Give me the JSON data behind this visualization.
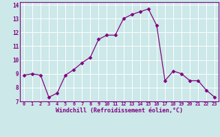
{
  "x": [
    0,
    1,
    2,
    3,
    4,
    5,
    6,
    7,
    8,
    9,
    10,
    11,
    12,
    13,
    14,
    15,
    16,
    17,
    18,
    19,
    20,
    21,
    22,
    23
  ],
  "y": [
    8.9,
    9.0,
    8.9,
    7.3,
    7.6,
    8.9,
    9.3,
    9.8,
    10.2,
    11.5,
    11.8,
    11.8,
    13.0,
    13.3,
    13.5,
    13.7,
    12.5,
    8.5,
    9.2,
    9.0,
    8.5,
    8.5,
    7.8,
    7.3
  ],
  "xlim": [
    -0.5,
    23.5
  ],
  "ylim": [
    7.0,
    14.2
  ],
  "xticks": [
    0,
    1,
    2,
    3,
    4,
    5,
    6,
    7,
    8,
    9,
    10,
    11,
    12,
    13,
    14,
    15,
    16,
    17,
    18,
    19,
    20,
    21,
    22,
    23
  ],
  "yticks": [
    7,
    8,
    9,
    10,
    11,
    12,
    13,
    14
  ],
  "xlabel": "Windchill (Refroidissement éolien,°C)",
  "line_color": "#800080",
  "marker": "D",
  "marker_size": 2.5,
  "background_color": "#cce8e8",
  "grid_color": "#ffffff",
  "tick_label_color": "#800080",
  "axis_label_color": "#800080",
  "separator_color": "#800080",
  "title": ""
}
